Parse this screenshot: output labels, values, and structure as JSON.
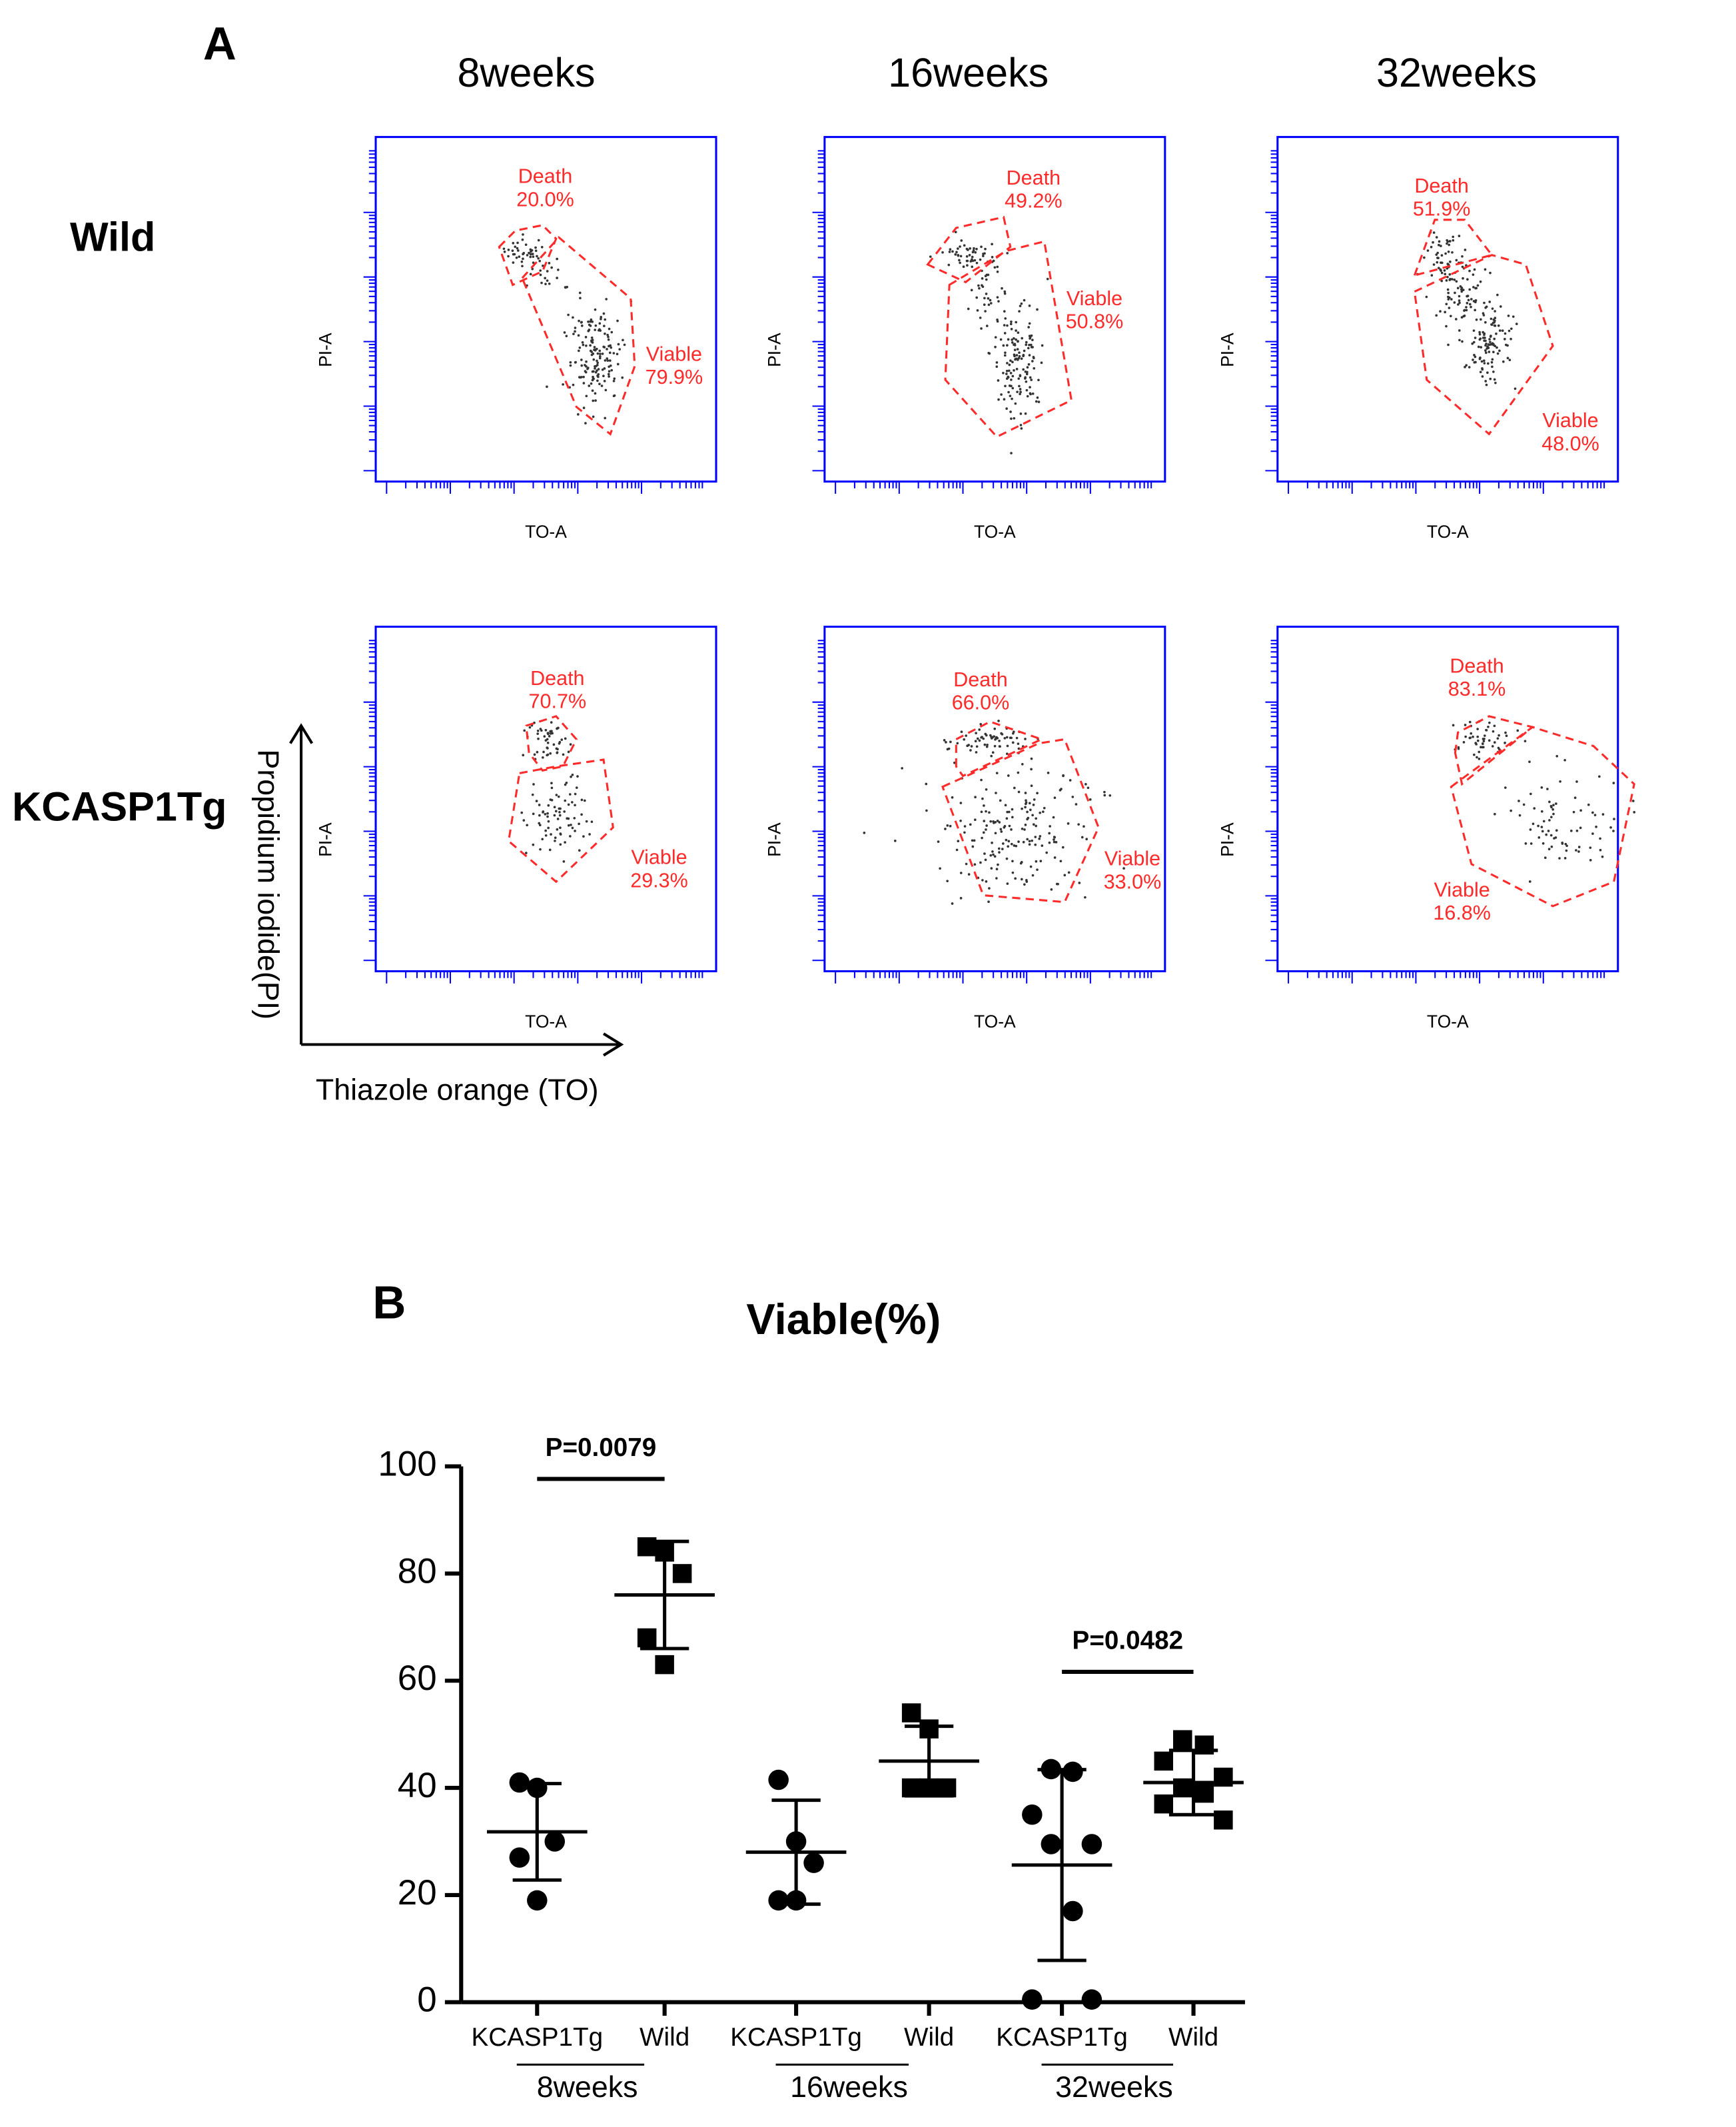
{
  "panel_a": {
    "label": "A",
    "columns": [
      "8weeks",
      "16weeks",
      "32weeks"
    ],
    "rows": [
      "Wild",
      "KCASP1Tg"
    ],
    "x_axis_label": "TO-A",
    "y_axis_label": "PI-A",
    "arrow_x_label": "Thiazole orange (TO)",
    "arrow_y_label": "Propidium iodide(PI)",
    "plots": [
      {
        "death_name": "Death",
        "death": "20.0%",
        "viable_name": "Viable",
        "viable": "79.9%"
      },
      {
        "death_name": "Death",
        "death": "49.2%",
        "viable_name": "Viable",
        "viable": "50.8%"
      },
      {
        "death_name": "Death",
        "death": "51.9%",
        "viable_name": "Viable",
        "viable": "48.0%"
      },
      {
        "death_name": "Death",
        "death": "70.7%",
        "viable_name": "Viable",
        "viable": "29.3%"
      },
      {
        "death_name": "Death",
        "death": "66.0%",
        "viable_name": "Viable",
        "viable": "33.0%"
      },
      {
        "death_name": "Death",
        "death": "83.1%",
        "viable_name": "Viable",
        "viable": "16.8%"
      }
    ]
  },
  "chart_data": {
    "type": "dot",
    "label": "B",
    "title": "Viable(%)",
    "ylim": [
      0,
      100
    ],
    "yticks": [
      0,
      20,
      40,
      60,
      80,
      100
    ],
    "week_labels": [
      "8weeks",
      "16weeks",
      "32weeks"
    ],
    "groups": [
      {
        "name": "KCASP1Tg",
        "marker": "circle",
        "values": [
          41,
          40,
          30,
          27,
          19
        ],
        "mean": 31.8,
        "sd": 9
      },
      {
        "name": "Wild",
        "marker": "square",
        "values": [
          85,
          84,
          80,
          68,
          63
        ],
        "mean": 76,
        "sd": 10
      },
      {
        "name": "KCASP1Tg",
        "marker": "circle",
        "values": [
          41.5,
          30,
          26,
          19,
          19
        ],
        "mean": 28,
        "sd": 9.7
      },
      {
        "name": "Wild",
        "marker": "square",
        "values": [
          54,
          51,
          40,
          40,
          40
        ],
        "mean": 45,
        "sd": 6.5
      },
      {
        "name": "KCASP1Tg",
        "marker": "circle",
        "values": [
          43.5,
          43,
          35,
          29.5,
          29.5,
          17,
          0.5,
          0.5
        ],
        "mean": 25.6,
        "sd": 17.8
      },
      {
        "name": "Wild",
        "marker": "square",
        "values": [
          49,
          48,
          45,
          42,
          40,
          39,
          37,
          34
        ],
        "mean": 41,
        "sd": 6
      }
    ],
    "comparisons": [
      {
        "label": "P=0.0079",
        "groups": [
          0,
          1
        ]
      },
      {
        "label": "P=0.0482",
        "groups": [
          4,
          5
        ]
      }
    ]
  }
}
